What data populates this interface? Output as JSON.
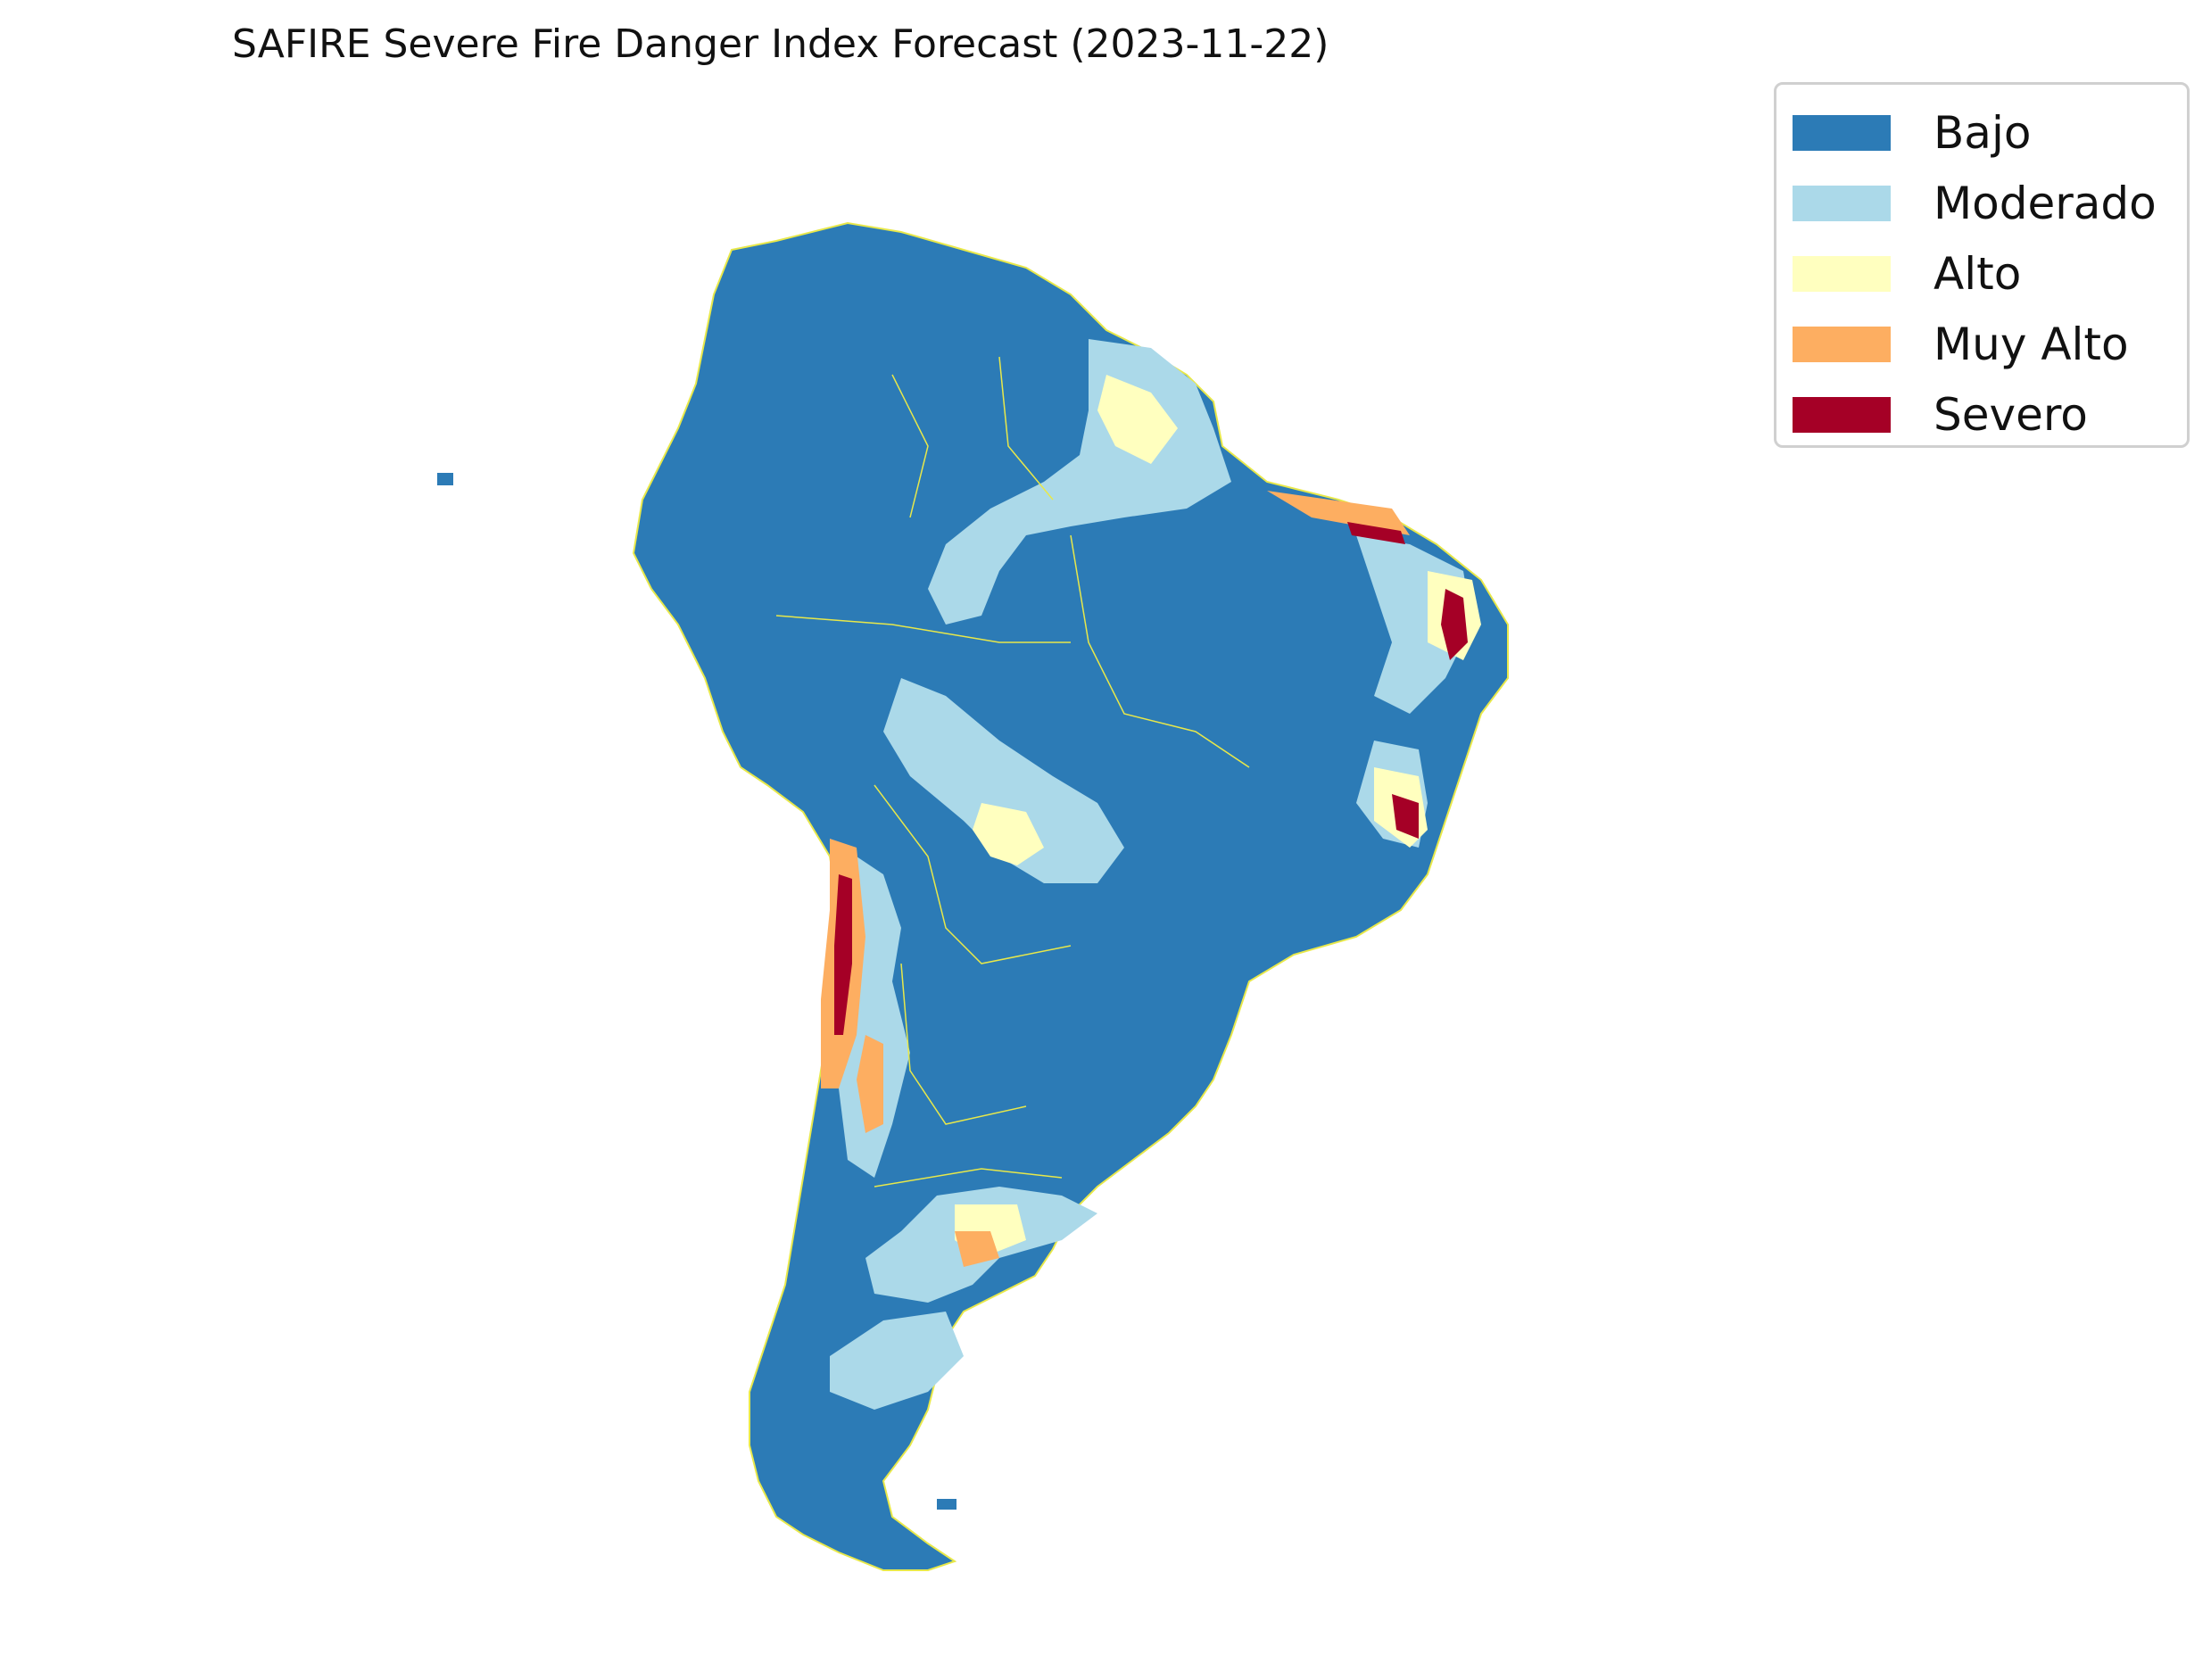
{
  "title": "SAFIRE Severe Fire Danger Index Forecast (2023-11-22)",
  "legend": {
    "items": [
      {
        "label": "Bajo",
        "color": "#2c7bb6"
      },
      {
        "label": "Moderado",
        "color": "#abd9e9"
      },
      {
        "label": "Alto",
        "color": "#ffffbf"
      },
      {
        "label": "Muy Alto",
        "color": "#fdae61"
      },
      {
        "label": "Severo",
        "color": "#a50026"
      }
    ]
  },
  "colors": {
    "border_lines": "#e8e84a",
    "background": "#ffffff"
  }
}
